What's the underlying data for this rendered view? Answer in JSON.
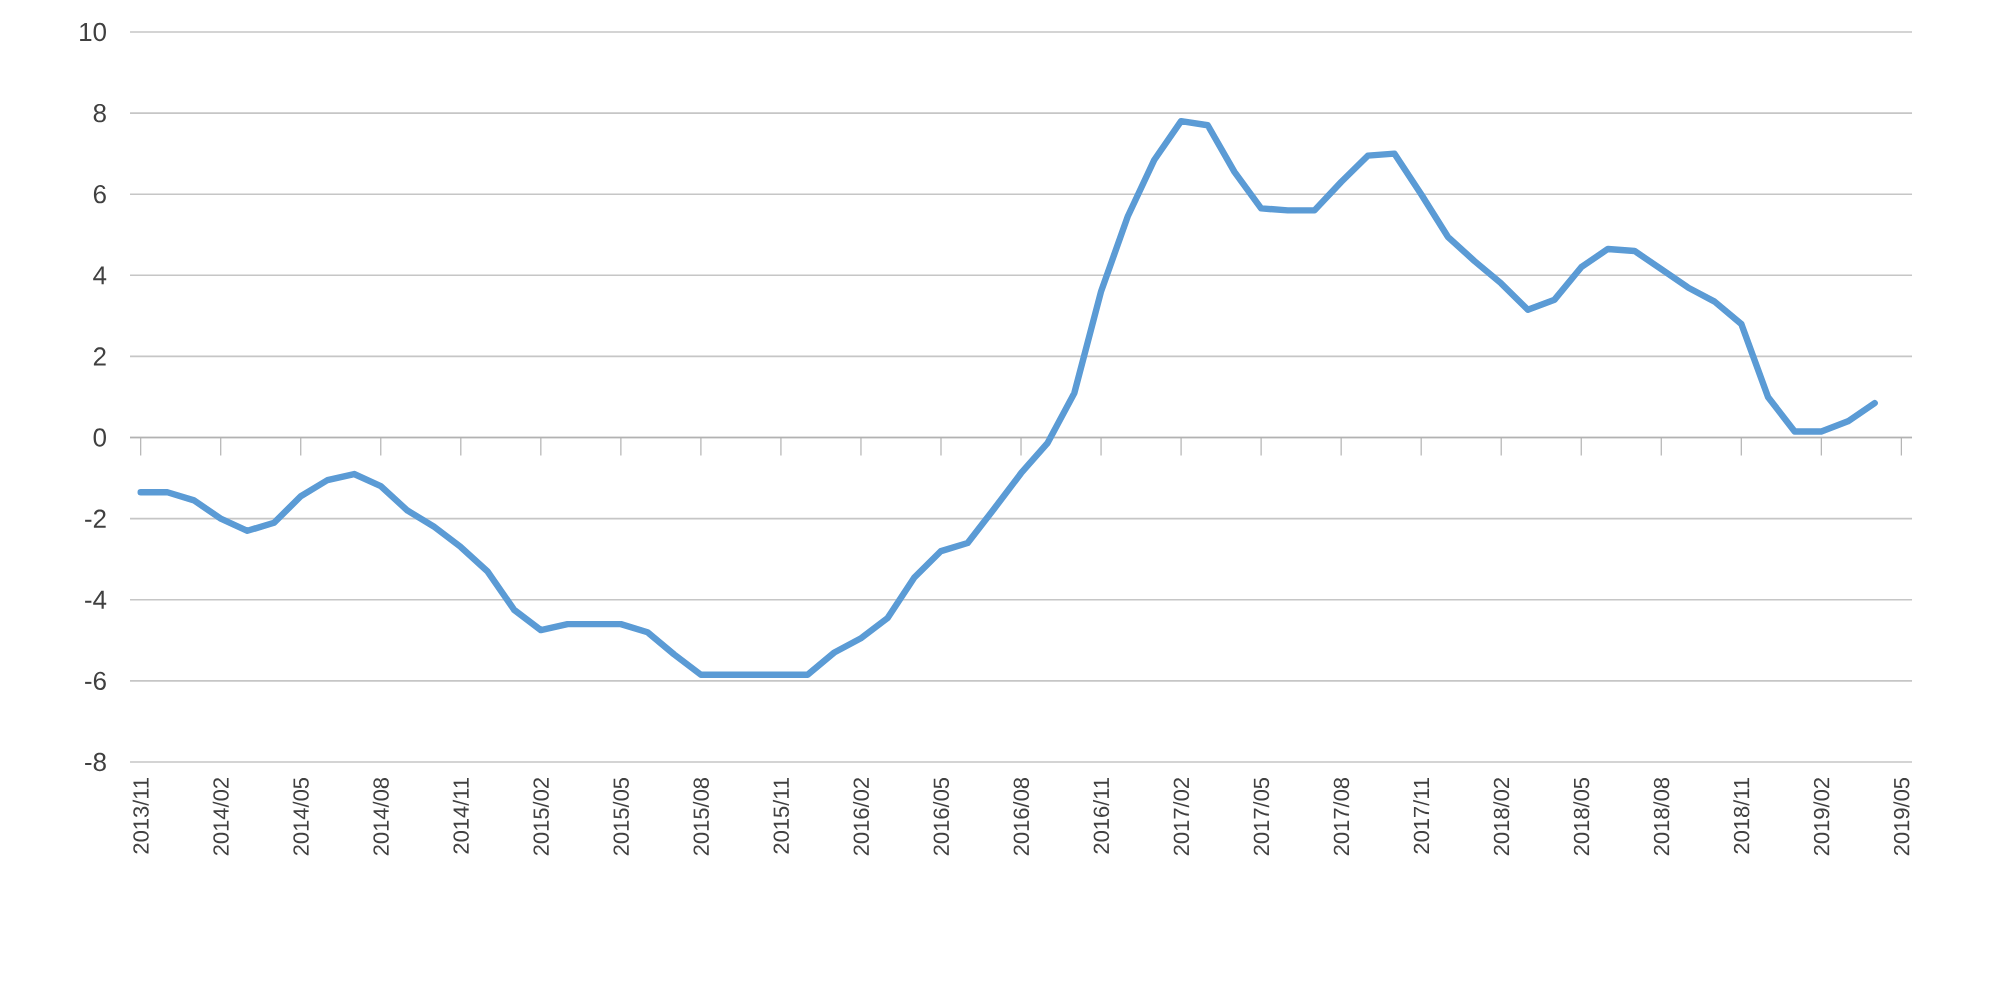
{
  "chart_data": {
    "type": "line",
    "categories": [
      "2013/11",
      null,
      null,
      "2014/02",
      null,
      null,
      "2014/05",
      null,
      null,
      "2014/08",
      null,
      null,
      "2014/11",
      null,
      null,
      "2015/02",
      null,
      null,
      "2015/05",
      null,
      null,
      "2015/08",
      null,
      null,
      "2015/11",
      null,
      null,
      "2016/02",
      null,
      null,
      "2016/05",
      null,
      null,
      "2016/08",
      null,
      null,
      "2016/11",
      null,
      null,
      "2017/02",
      null,
      null,
      "2017/05",
      null,
      null,
      "2017/08",
      null,
      null,
      "2017/11",
      null,
      null,
      "2018/02",
      null,
      null,
      "2018/05",
      null,
      null,
      "2018/08",
      null,
      null,
      "2018/11",
      null,
      null,
      "2019/02",
      null,
      null,
      "2019/05"
    ],
    "series": [
      {
        "color": "#5b9bd5",
        "values": [
          -1.35,
          -1.35,
          -1.55,
          -2.0,
          -2.3,
          -2.1,
          -1.45,
          -1.05,
          -0.9,
          -1.2,
          -1.8,
          -2.2,
          -2.7,
          -3.3,
          -4.25,
          -4.75,
          -4.6,
          -4.6,
          -4.6,
          -4.8,
          -5.35,
          -5.85,
          -5.85,
          -5.85,
          -5.85,
          -5.85,
          -5.3,
          -4.95,
          -4.45,
          -3.45,
          -2.8,
          -2.6,
          -1.75,
          -0.88,
          -0.13,
          1.1,
          3.6,
          5.45,
          6.85,
          7.8,
          7.7,
          6.55,
          5.65,
          5.6,
          5.6,
          6.3,
          6.95,
          7.0,
          6.0,
          4.95,
          4.35,
          3.8,
          3.15,
          3.4,
          4.2,
          4.65,
          4.6,
          4.15,
          3.7,
          3.35,
          2.8,
          1.0,
          0.15,
          0.15,
          0.4,
          0.85,
          null
        ]
      }
    ],
    "ylim": [
      -8,
      10
    ],
    "yticks": [
      -8,
      -6,
      -4,
      -2,
      0,
      2,
      4,
      6,
      8,
      10
    ],
    "grid": "y"
  }
}
